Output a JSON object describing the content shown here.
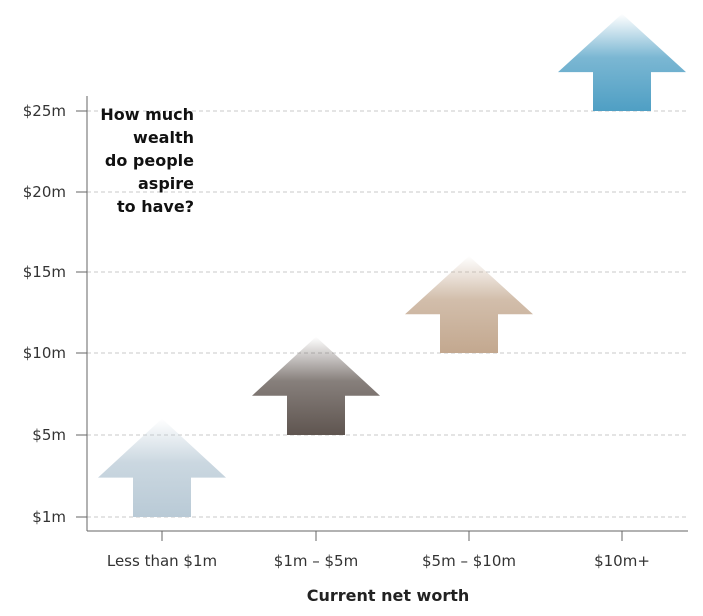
{
  "chart_data": {
    "type": "bar",
    "title_lines": [
      "How much",
      "wealth",
      "do people",
      "aspire",
      "to have?"
    ],
    "xlabel": "Current net worth",
    "ylabel": "",
    "categories": [
      "Less than $1m",
      "$1m – $5m",
      "$5m – $10m",
      "$10m+"
    ],
    "y_ticks": [
      {
        "label": "$1m",
        "value": 1
      },
      {
        "label": "$5m",
        "value": 5
      },
      {
        "label": "$10m",
        "value": 10
      },
      {
        "label": "$15m",
        "value": 15
      },
      {
        "label": "$20m",
        "value": 20
      },
      {
        "label": "$25m",
        "value": 25
      }
    ],
    "series": [
      {
        "values_low": [
          1,
          5,
          10,
          25
        ],
        "values_high": [
          6,
          11,
          16,
          31
        ]
      }
    ],
    "grid": true,
    "colors": [
      "#b9cad6",
      "#5f5550",
      "#c3a88f",
      "#4f9fc4"
    ]
  }
}
